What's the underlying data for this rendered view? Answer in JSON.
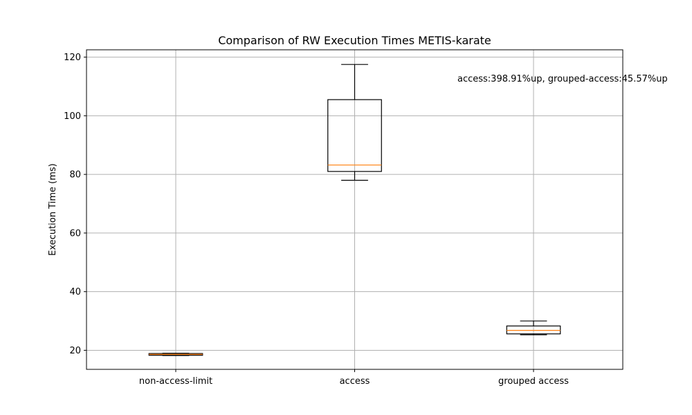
{
  "chart_data": {
    "type": "box",
    "title": "Comparison of RW Execution Times METIS-karate",
    "xlabel": "",
    "ylabel": "Execution Time (ms)",
    "ylim": [
      13.5,
      122.5
    ],
    "yticks": [
      20,
      40,
      60,
      80,
      100,
      120
    ],
    "grid": true,
    "categories": [
      "non-access-limit",
      "access",
      "grouped access"
    ],
    "boxes": [
      {
        "category": "non-access-limit",
        "whisker_low": 18.2,
        "q1": 18.3,
        "median": 18.6,
        "q3": 18.9,
        "whisker_high": 19.0
      },
      {
        "category": "access",
        "whisker_low": 78.0,
        "q1": 81.0,
        "median": 83.2,
        "q3": 105.5,
        "whisker_high": 117.5
      },
      {
        "category": "grouped access",
        "whisker_low": 25.3,
        "q1": 25.6,
        "median": 26.8,
        "q3": 28.3,
        "whisker_high": 30.0
      }
    ],
    "annotation": "access:398.91%up, grouped-access:45.57%up",
    "colors": {
      "box": "#000000",
      "median": "#ff7f0e",
      "grid": "#b0b0b0"
    }
  }
}
